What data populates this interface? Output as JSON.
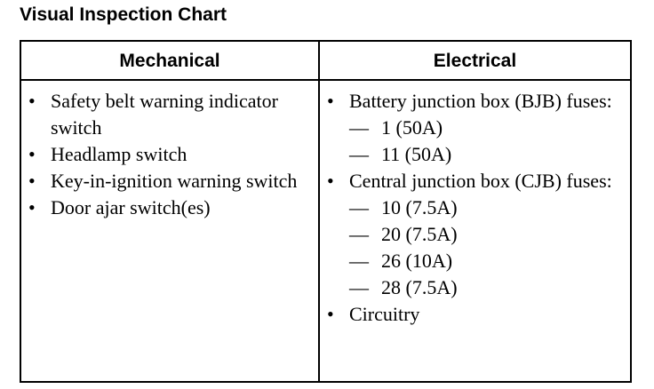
{
  "title": "Visual Inspection Chart",
  "columns": [
    {
      "header": "Mechanical",
      "items": [
        {
          "type": "bullet",
          "text": "Safety belt warning indicator switch"
        },
        {
          "type": "bullet",
          "text": "Headlamp switch"
        },
        {
          "type": "bullet",
          "text": "Key-in-ignition warning switch"
        },
        {
          "type": "bullet",
          "text": "Door ajar switch(es)"
        }
      ]
    },
    {
      "header": "Electrical",
      "items": [
        {
          "type": "bullet",
          "text": "Battery junction box (BJB) fuses:"
        },
        {
          "type": "sub",
          "text": "1 (50A)"
        },
        {
          "type": "sub",
          "text": "11 (50A)"
        },
        {
          "type": "bullet",
          "text": "Central junction box (CJB) fuses:"
        },
        {
          "type": "sub",
          "text": "10 (7.5A)"
        },
        {
          "type": "sub",
          "text": "20 (7.5A)"
        },
        {
          "type": "sub",
          "text": "26 (10A)"
        },
        {
          "type": "sub",
          "text": "28 (7.5A)"
        },
        {
          "type": "bullet",
          "text": "Circuitry"
        }
      ]
    }
  ],
  "symbols": {
    "bullet": "•",
    "dash": "—"
  }
}
